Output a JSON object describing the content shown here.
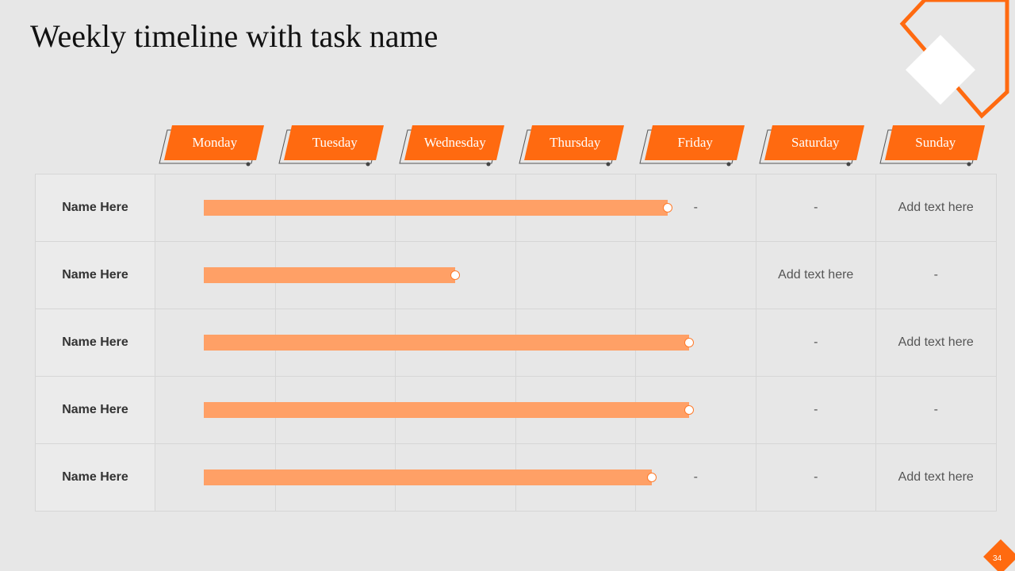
{
  "header": {
    "title": "Weekly timeline with task name"
  },
  "days": [
    "Monday",
    "Tuesday",
    "Wednesday",
    "Thursday",
    "Friday",
    "Saturday",
    "Sunday"
  ],
  "rows": [
    {
      "name": "Name Here",
      "friday": "-",
      "saturday": "-",
      "sunday": "Add text here"
    },
    {
      "name": "Name Here",
      "saturday": "Add text here",
      "sunday": "-"
    },
    {
      "name": "Name Here",
      "saturday": "-",
      "sunday": "Add text here"
    },
    {
      "name": "Name Here",
      "saturday": "-",
      "sunday": "-"
    },
    {
      "name": "Name Here",
      "friday": "-",
      "saturday": "-",
      "sunday": "Add text here"
    }
  ],
  "footer": {
    "page_number": "34"
  }
}
